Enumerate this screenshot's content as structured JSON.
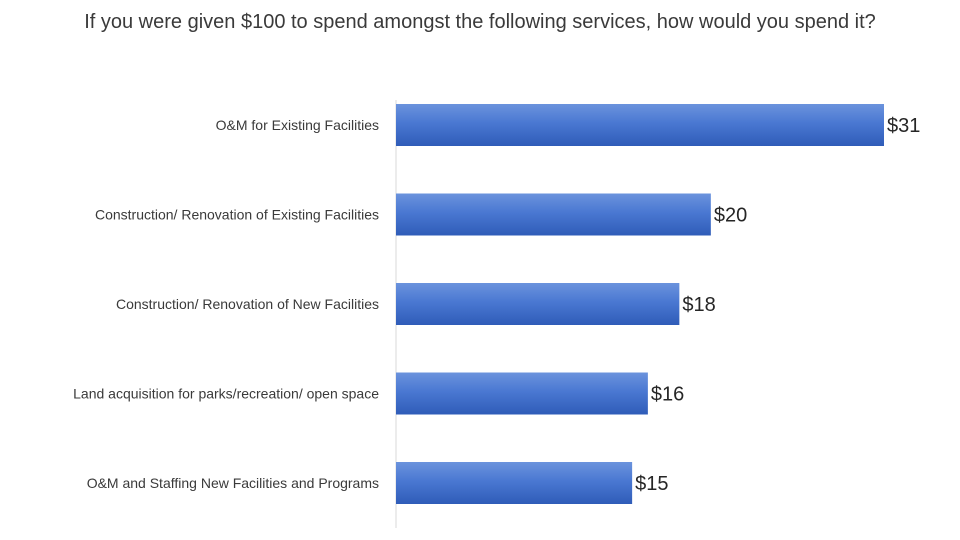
{
  "chart_data": {
    "type": "bar",
    "orientation": "horizontal",
    "title": "If you were given $100 to spend amongst the following services, how would you spend it?",
    "categories": [
      "O&M for Existing Facilities",
      "Construction/ Renovation of Existing Facilities",
      "Construction/ Renovation of New Facilities",
      "Land acquisition for parks/recreation/ open space",
      "O&M and Staffing New Facilities and Programs"
    ],
    "values": [
      31,
      20,
      18,
      16,
      15
    ],
    "value_labels": [
      "$31",
      "$20",
      "$18",
      "$16",
      "$15"
    ],
    "xlim": [
      0,
      31
    ],
    "grid": false,
    "legend": "none",
    "colors": {
      "bar_top": "#6b93dd",
      "bar_mid": "#4a78d2",
      "bar_bottom": "#2f5cb8",
      "axis": "#d9d9d9",
      "text": "#3a3a3a"
    }
  }
}
